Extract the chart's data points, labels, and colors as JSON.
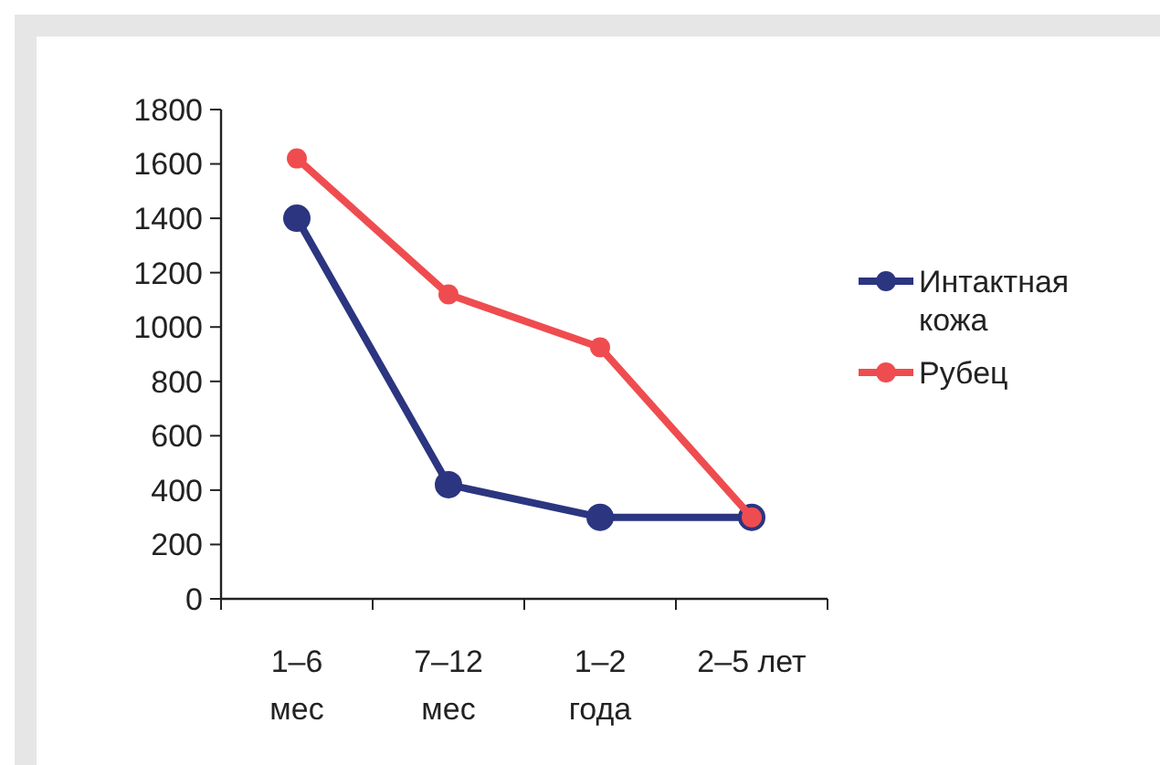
{
  "chart_data": {
    "type": "line",
    "categories": [
      "1–6\nмес",
      "7–12\nмес",
      "1–2\nгода",
      "2–5 лет"
    ],
    "series": [
      {
        "name": "Интактная кожа",
        "color": "#2b3580",
        "values": [
          1400,
          420,
          300,
          300
        ]
      },
      {
        "name": "Рубец",
        "color": "#ef4c4f",
        "values": [
          1620,
          1120,
          925,
          300
        ]
      }
    ],
    "ylim": [
      0,
      1800
    ],
    "yticks": [
      0,
      200,
      400,
      600,
      800,
      1000,
      1200,
      1400,
      1600,
      1800
    ],
    "grid": false,
    "legend": "right",
    "marker": "circle",
    "line_style": "solid"
  }
}
